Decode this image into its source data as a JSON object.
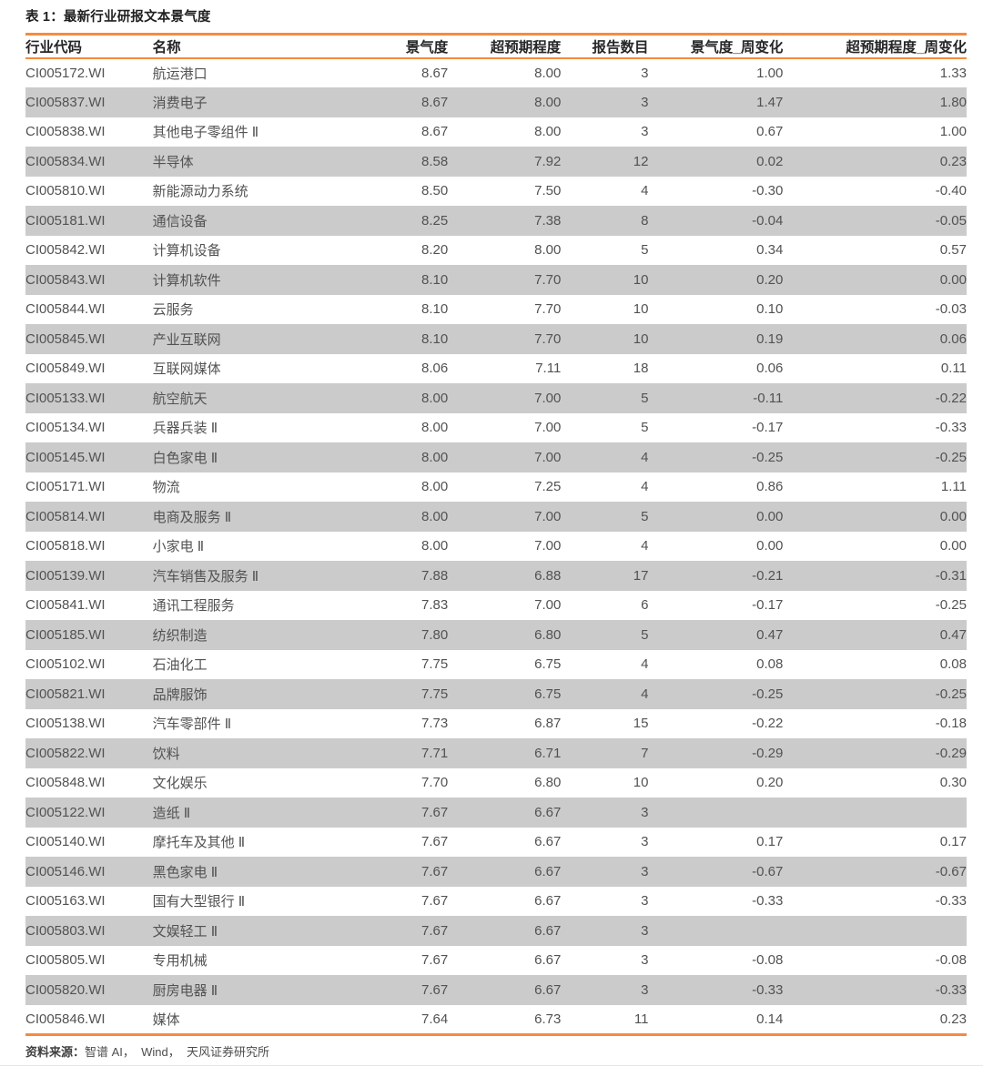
{
  "title": "表 1：最新行业研报文本景气度",
  "colors": {
    "accent_orange": "#F68B3C",
    "row_alt_gray": "#CBCBCB",
    "header_text": "#262626",
    "body_text": "#525252"
  },
  "table": {
    "columns": [
      {
        "key": "code",
        "label": "行业代码",
        "align": "left"
      },
      {
        "key": "name",
        "label": "名称",
        "align": "left"
      },
      {
        "key": "sentiment",
        "label": "景气度",
        "align": "right"
      },
      {
        "key": "surprise",
        "label": "超预期程度",
        "align": "right"
      },
      {
        "key": "report-count",
        "label": "报告数目",
        "align": "right"
      },
      {
        "key": "sentiment-wow",
        "label": "景气度_周变化",
        "align": "right"
      },
      {
        "key": "surprise-wow",
        "label": "超预期程度_周变化",
        "align": "right"
      }
    ],
    "rows": [
      [
        "CI005172.WI",
        "航运港口",
        "8.67",
        "8.00",
        "3",
        "1.00",
        "1.33"
      ],
      [
        "CI005837.WI",
        "消费电子",
        "8.67",
        "8.00",
        "3",
        "1.47",
        "1.80"
      ],
      [
        "CI005838.WI",
        "其他电子零组件 Ⅱ",
        "8.67",
        "8.00",
        "3",
        "0.67",
        "1.00"
      ],
      [
        "CI005834.WI",
        "半导体",
        "8.58",
        "7.92",
        "12",
        "0.02",
        "0.23"
      ],
      [
        "CI005810.WI",
        "新能源动力系统",
        "8.50",
        "7.50",
        "4",
        "-0.30",
        "-0.40"
      ],
      [
        "CI005181.WI",
        "通信设备",
        "8.25",
        "7.38",
        "8",
        "-0.04",
        "-0.05"
      ],
      [
        "CI005842.WI",
        "计算机设备",
        "8.20",
        "8.00",
        "5",
        "0.34",
        "0.57"
      ],
      [
        "CI005843.WI",
        "计算机软件",
        "8.10",
        "7.70",
        "10",
        "0.20",
        "0.00"
      ],
      [
        "CI005844.WI",
        "云服务",
        "8.10",
        "7.70",
        "10",
        "0.10",
        "-0.03"
      ],
      [
        "CI005845.WI",
        "产业互联网",
        "8.10",
        "7.70",
        "10",
        "0.19",
        "0.06"
      ],
      [
        "CI005849.WI",
        "互联网媒体",
        "8.06",
        "7.11",
        "18",
        "0.06",
        "0.11"
      ],
      [
        "CI005133.WI",
        "航空航天",
        "8.00",
        "7.00",
        "5",
        "-0.11",
        "-0.22"
      ],
      [
        "CI005134.WI",
        "兵器兵装 Ⅱ",
        "8.00",
        "7.00",
        "5",
        "-0.17",
        "-0.33"
      ],
      [
        "CI005145.WI",
        "白色家电 Ⅱ",
        "8.00",
        "7.00",
        "4",
        "-0.25",
        "-0.25"
      ],
      [
        "CI005171.WI",
        "物流",
        "8.00",
        "7.25",
        "4",
        "0.86",
        "1.11"
      ],
      [
        "CI005814.WI",
        "电商及服务 Ⅱ",
        "8.00",
        "7.00",
        "5",
        "0.00",
        "0.00"
      ],
      [
        "CI005818.WI",
        "小家电 Ⅱ",
        "8.00",
        "7.00",
        "4",
        "0.00",
        "0.00"
      ],
      [
        "CI005139.WI",
        "汽车销售及服务 Ⅱ",
        "7.88",
        "6.88",
        "17",
        "-0.21",
        "-0.31"
      ],
      [
        "CI005841.WI",
        "通讯工程服务",
        "7.83",
        "7.00",
        "6",
        "-0.17",
        "-0.25"
      ],
      [
        "CI005185.WI",
        "纺织制造",
        "7.80",
        "6.80",
        "5",
        "0.47",
        "0.47"
      ],
      [
        "CI005102.WI",
        "石油化工",
        "7.75",
        "6.75",
        "4",
        "0.08",
        "0.08"
      ],
      [
        "CI005821.WI",
        "品牌服饰",
        "7.75",
        "6.75",
        "4",
        "-0.25",
        "-0.25"
      ],
      [
        "CI005138.WI",
        "汽车零部件 Ⅱ",
        "7.73",
        "6.87",
        "15",
        "-0.22",
        "-0.18"
      ],
      [
        "CI005822.WI",
        "饮料",
        "7.71",
        "6.71",
        "7",
        "-0.29",
        "-0.29"
      ],
      [
        "CI005848.WI",
        "文化娱乐",
        "7.70",
        "6.80",
        "10",
        "0.20",
        "0.30"
      ],
      [
        "CI005122.WI",
        "造纸 Ⅱ",
        "7.67",
        "6.67",
        "3",
        "",
        ""
      ],
      [
        "CI005140.WI",
        "摩托车及其他 Ⅱ",
        "7.67",
        "6.67",
        "3",
        "0.17",
        "0.17"
      ],
      [
        "CI005146.WI",
        "黑色家电 Ⅱ",
        "7.67",
        "6.67",
        "3",
        "-0.67",
        "-0.67"
      ],
      [
        "CI005163.WI",
        "国有大型银行 Ⅱ",
        "7.67",
        "6.67",
        "3",
        "-0.33",
        "-0.33"
      ],
      [
        "CI005803.WI",
        "文娱轻工 Ⅱ",
        "7.67",
        "6.67",
        "3",
        "",
        ""
      ],
      [
        "CI005805.WI",
        "专用机械",
        "7.67",
        "6.67",
        "3",
        "-0.08",
        "-0.08"
      ],
      [
        "CI005820.WI",
        "厨房电器 Ⅱ",
        "7.67",
        "6.67",
        "3",
        "-0.33",
        "-0.33"
      ],
      [
        "CI005846.WI",
        "媒体",
        "7.64",
        "6.73",
        "11",
        "0.14",
        "0.23"
      ]
    ]
  },
  "footer": {
    "label": "资料来源：",
    "sources": "智谱 AI，  Wind，  天风证券研究所"
  }
}
